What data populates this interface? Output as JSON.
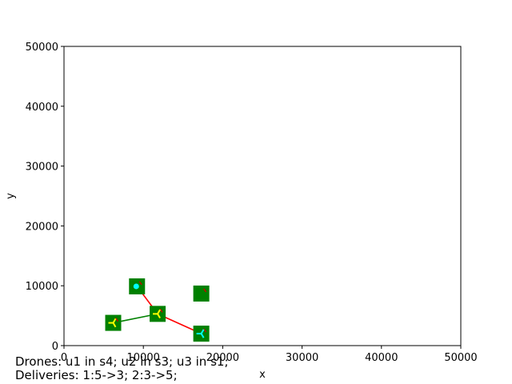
{
  "chart_data": {
    "type": "scatter",
    "title": "",
    "xlabel": "x",
    "ylabel": "y",
    "xlim": [
      0,
      50000
    ],
    "ylim": [
      0,
      50000
    ],
    "xticks": [
      0,
      10000,
      20000,
      30000,
      40000,
      50000
    ],
    "yticks": [
      0,
      10000,
      20000,
      30000,
      40000,
      50000
    ],
    "grid": false,
    "stations": [
      {
        "x": 9200,
        "y": 9900,
        "color": "#008000"
      },
      {
        "x": 17300,
        "y": 8700,
        "color": "#008000"
      },
      {
        "x": 11800,
        "y": 5300,
        "color": "#008000"
      },
      {
        "x": 6200,
        "y": 3800,
        "color": "#008000"
      },
      {
        "x": 17300,
        "y": 2000,
        "color": "#008000"
      }
    ],
    "routes": [
      {
        "from": [
          9200,
          9900
        ],
        "to": [
          11800,
          5300
        ],
        "color": "#ff0000"
      },
      {
        "from": [
          11800,
          5300
        ],
        "to": [
          17300,
          2000
        ],
        "color": "#ff0000"
      },
      {
        "from": [
          6200,
          3800
        ],
        "to": [
          11800,
          5300
        ],
        "color": "#008000"
      }
    ],
    "drones": [
      {
        "x": 11800,
        "y": 5300,
        "color": "#ffff00",
        "marker": "tri"
      },
      {
        "x": 6200,
        "y": 3800,
        "color": "#ffff00",
        "marker": "tri"
      },
      {
        "x": 17300,
        "y": 2000,
        "color": "#00ffff",
        "marker": "tri"
      }
    ],
    "packages": [
      {
        "x": 9100,
        "y": 9900,
        "color": "#00ffff",
        "marker": "circle"
      }
    ]
  },
  "status": {
    "drones_line": "Drones: u1 in s4; u2 in s3; u3 in s1;",
    "deliveries_line": "Deliveries: 1:5->3; 2:3->5;"
  }
}
